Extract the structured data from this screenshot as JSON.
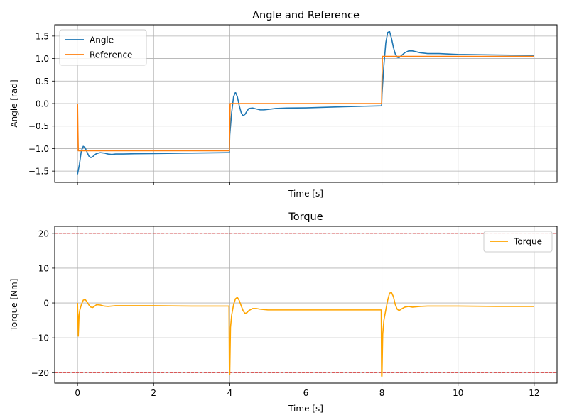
{
  "chart_data": [
    {
      "type": "line",
      "title": "Angle and Reference",
      "xlabel": "Time [s]",
      "ylabel": "Angle [rad]",
      "xlim": [
        -0.6,
        12.6
      ],
      "ylim": [
        -1.75,
        1.75
      ],
      "xticks": [
        0,
        2,
        4,
        6,
        8,
        10,
        12
      ],
      "show_xtick_labels": false,
      "yticks": [
        -1.5,
        -1.0,
        -0.5,
        0.0,
        0.5,
        1.0,
        1.5
      ],
      "ytick_labels": [
        "−1.5",
        "−1.0",
        "−0.5",
        "0.0",
        "0.5",
        "1.0",
        "1.5"
      ],
      "grid": true,
      "legend": "upper-left",
      "series": [
        {
          "name": "Angle",
          "color": "#1f77b4",
          "x": [
            0,
            0.05,
            0.1,
            0.15,
            0.2,
            0.25,
            0.3,
            0.35,
            0.4,
            0.45,
            0.5,
            0.6,
            0.7,
            0.8,
            0.9,
            1.0,
            1.2,
            1.5,
            2.0,
            3.0,
            3.9,
            3.99,
            4.0,
            4.05,
            4.1,
            4.15,
            4.2,
            4.25,
            4.3,
            4.35,
            4.4,
            4.45,
            4.5,
            4.6,
            4.7,
            4.8,
            4.9,
            5.0,
            5.2,
            5.5,
            6.0,
            7.0,
            7.99,
            8.0,
            8.05,
            8.1,
            8.15,
            8.2,
            8.25,
            8.3,
            8.35,
            8.4,
            8.45,
            8.5,
            8.6,
            8.7,
            8.8,
            8.9,
            9.0,
            9.2,
            9.5,
            10.0,
            11.0,
            12.0
          ],
          "y": [
            -1.57,
            -1.35,
            -1.05,
            -0.95,
            -0.98,
            -1.08,
            -1.17,
            -1.2,
            -1.18,
            -1.14,
            -1.11,
            -1.09,
            -1.1,
            -1.12,
            -1.13,
            -1.12,
            -1.12,
            -1.115,
            -1.11,
            -1.1,
            -1.09,
            -1.09,
            -0.7,
            -0.2,
            0.15,
            0.25,
            0.15,
            -0.05,
            -0.2,
            -0.27,
            -0.24,
            -0.17,
            -0.11,
            -0.1,
            -0.12,
            -0.14,
            -0.14,
            -0.13,
            -0.11,
            -0.1,
            -0.095,
            -0.07,
            -0.05,
            0.2,
            0.85,
            1.35,
            1.58,
            1.6,
            1.45,
            1.25,
            1.1,
            1.03,
            1.02,
            1.06,
            1.13,
            1.17,
            1.17,
            1.15,
            1.13,
            1.11,
            1.11,
            1.09,
            1.08,
            1.07
          ]
        },
        {
          "name": "Reference",
          "color": "#ff7f0e",
          "x": [
            0,
            0.01,
            0.02,
            3.99,
            4.0,
            4.01,
            7.99,
            8.0,
            8.01,
            12.0
          ],
          "y": [
            0.0,
            -0.6,
            -1.047,
            -1.047,
            -0.5,
            0.0,
            0.0,
            0.5,
            1.047,
            1.047
          ]
        }
      ]
    },
    {
      "type": "line",
      "title": "Torque",
      "xlabel": "Time [s]",
      "ylabel": "Torque [Nm]",
      "xlim": [
        -0.6,
        12.6
      ],
      "ylim": [
        -23,
        22
      ],
      "xticks": [
        0,
        2,
        4,
        6,
        8,
        10,
        12
      ],
      "xtick_labels": [
        "0",
        "2",
        "4",
        "6",
        "8",
        "10",
        "12"
      ],
      "show_xtick_labels": true,
      "yticks": [
        -20,
        -10,
        0,
        10,
        20
      ],
      "ytick_labels": [
        "−20",
        "−10",
        "0",
        "10",
        "20"
      ],
      "grid": true,
      "legend": "upper-right",
      "limit_lines": [
        20,
        -20
      ],
      "limit_color": "#d62728",
      "series": [
        {
          "name": "Torque",
          "color": "#ffa500",
          "x": [
            0,
            0.02,
            0.04,
            0.06,
            0.1,
            0.15,
            0.2,
            0.25,
            0.3,
            0.35,
            0.4,
            0.45,
            0.5,
            0.6,
            0.7,
            0.8,
            0.9,
            1.0,
            1.2,
            1.5,
            2.0,
            3.0,
            3.98,
            3.99,
            4.0,
            4.02,
            4.05,
            4.1,
            4.15,
            4.2,
            4.25,
            4.3,
            4.35,
            4.4,
            4.45,
            4.5,
            4.6,
            4.7,
            4.8,
            5.0,
            5.5,
            6.0,
            7.0,
            7.98,
            7.99,
            8.0,
            8.02,
            8.05,
            8.1,
            8.15,
            8.2,
            8.25,
            8.3,
            8.35,
            8.4,
            8.45,
            8.5,
            8.6,
            8.7,
            8.8,
            8.9,
            9.0,
            9.2,
            9.5,
            10.0,
            11.0,
            12.0
          ],
          "y": [
            0,
            -9.5,
            -3.5,
            -2.0,
            -0.5,
            0.8,
            1.0,
            0.3,
            -0.6,
            -1.2,
            -1.3,
            -0.9,
            -0.5,
            -0.6,
            -0.9,
            -1.0,
            -0.9,
            -0.8,
            -0.8,
            -0.8,
            -0.8,
            -0.9,
            -0.9,
            -20.5,
            -20.5,
            -7,
            -3.5,
            -0.5,
            1.2,
            1.6,
            0.7,
            -0.8,
            -2.2,
            -3.0,
            -2.8,
            -2.2,
            -1.6,
            -1.6,
            -1.8,
            -2.0,
            -2.0,
            -2.0,
            -2.0,
            -2.0,
            -21.0,
            -21.0,
            -9.0,
            -5.0,
            -2.0,
            0.8,
            2.8,
            3.0,
            1.8,
            -0.5,
            -1.8,
            -2.2,
            -1.8,
            -1.2,
            -1.0,
            -1.2,
            -1.1,
            -1.0,
            -0.9,
            -0.9,
            -0.9,
            -1.0,
            -1.0
          ]
        }
      ]
    }
  ]
}
